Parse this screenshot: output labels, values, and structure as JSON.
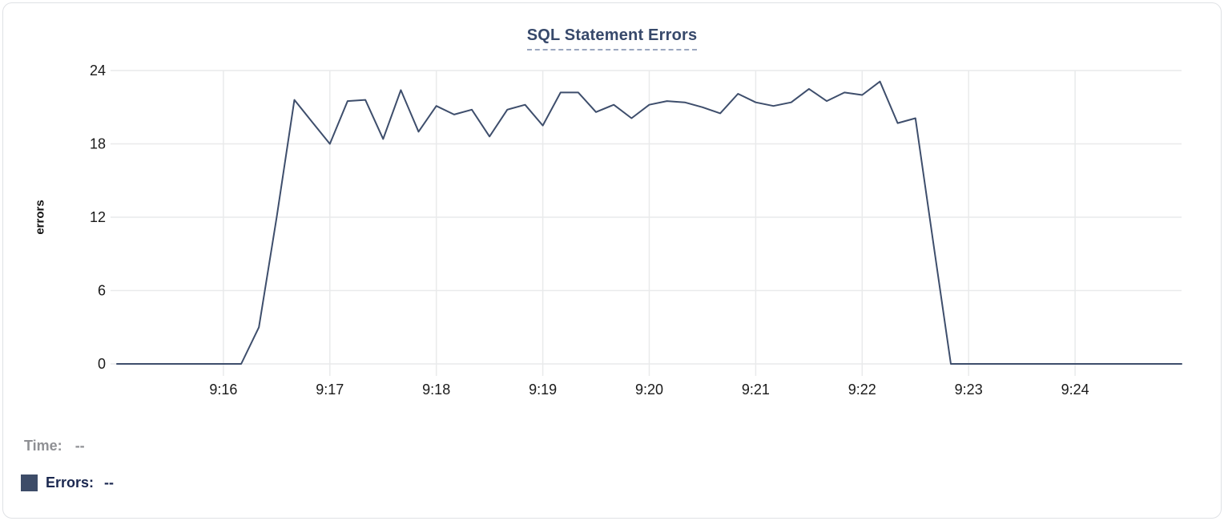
{
  "chart_data": {
    "type": "line",
    "title": "SQL Statement Errors",
    "xlabel": "",
    "ylabel": "errors",
    "ylim": [
      0,
      24
    ],
    "y_ticks": [
      0,
      6,
      12,
      18,
      24
    ],
    "x_domain": [
      "9:15:00",
      "9:25:00"
    ],
    "x_ticks": [
      "9:16",
      "9:17",
      "9:18",
      "9:19",
      "9:20",
      "9:21",
      "9:22",
      "9:23",
      "9:24"
    ],
    "grid": true,
    "legend_position": "bottom-left",
    "series": [
      {
        "name": "Errors",
        "color": "#3e4e6c",
        "points": [
          [
            "9:15:00",
            0
          ],
          [
            "9:15:10",
            0
          ],
          [
            "9:15:20",
            0
          ],
          [
            "9:15:30",
            0
          ],
          [
            "9:15:40",
            0
          ],
          [
            "9:15:50",
            0
          ],
          [
            "9:16:00",
            0
          ],
          [
            "9:16:10",
            0
          ],
          [
            "9:16:20",
            3
          ],
          [
            "9:16:30",
            12
          ],
          [
            "9:16:40",
            21.6
          ],
          [
            "9:16:50",
            19.8
          ],
          [
            "9:17:00",
            18
          ],
          [
            "9:17:10",
            21.5
          ],
          [
            "9:17:20",
            21.6
          ],
          [
            "9:17:30",
            18.4
          ],
          [
            "9:17:40",
            22.4
          ],
          [
            "9:17:50",
            19
          ],
          [
            "9:18:00",
            21.1
          ],
          [
            "9:18:10",
            20.4
          ],
          [
            "9:18:20",
            20.8
          ],
          [
            "9:18:30",
            18.6
          ],
          [
            "9:18:40",
            20.8
          ],
          [
            "9:18:50",
            21.2
          ],
          [
            "9:19:00",
            19.5
          ],
          [
            "9:19:10",
            22.2
          ],
          [
            "9:19:20",
            22.2
          ],
          [
            "9:19:30",
            20.6
          ],
          [
            "9:19:40",
            21.2
          ],
          [
            "9:19:50",
            20.1
          ],
          [
            "9:20:00",
            21.2
          ],
          [
            "9:20:10",
            21.5
          ],
          [
            "9:20:20",
            21.4
          ],
          [
            "9:20:30",
            21.0
          ],
          [
            "9:20:40",
            20.5
          ],
          [
            "9:20:50",
            22.1
          ],
          [
            "9:21:00",
            21.4
          ],
          [
            "9:21:10",
            21.1
          ],
          [
            "9:21:20",
            21.4
          ],
          [
            "9:21:30",
            22.5
          ],
          [
            "9:21:40",
            21.5
          ],
          [
            "9:21:50",
            22.2
          ],
          [
            "9:22:00",
            22.0
          ],
          [
            "9:22:10",
            23.1
          ],
          [
            "9:22:20",
            19.7
          ],
          [
            "9:22:30",
            20.1
          ],
          [
            "9:22:40",
            10
          ],
          [
            "9:22:50",
            0
          ],
          [
            "9:23:00",
            0
          ],
          [
            "9:23:10",
            0
          ],
          [
            "9:23:20",
            0
          ],
          [
            "9:23:30",
            0
          ],
          [
            "9:23:40",
            0
          ],
          [
            "9:23:50",
            0
          ],
          [
            "9:24:00",
            0
          ],
          [
            "9:24:10",
            0
          ],
          [
            "9:24:20",
            0
          ],
          [
            "9:24:30",
            0
          ],
          [
            "9:24:40",
            0
          ],
          [
            "9:24:50",
            0
          ],
          [
            "9:25:00",
            0
          ]
        ]
      }
    ]
  },
  "readout": {
    "time_label": "Time:",
    "time_value": "--",
    "errors_label": "Errors:",
    "errors_value": "--",
    "swatch_color": "#3d4c68"
  },
  "colors": {
    "line": "#3e4e6c",
    "grid": "#e9eaeb",
    "tick_text": "#1a1a1a",
    "title": "#37496b",
    "title_underline": "#9aa6bf",
    "time_label": "#8f9094",
    "errors_label": "#1b2850",
    "card_border": "#dfe1e5",
    "background": "#ffffff"
  }
}
